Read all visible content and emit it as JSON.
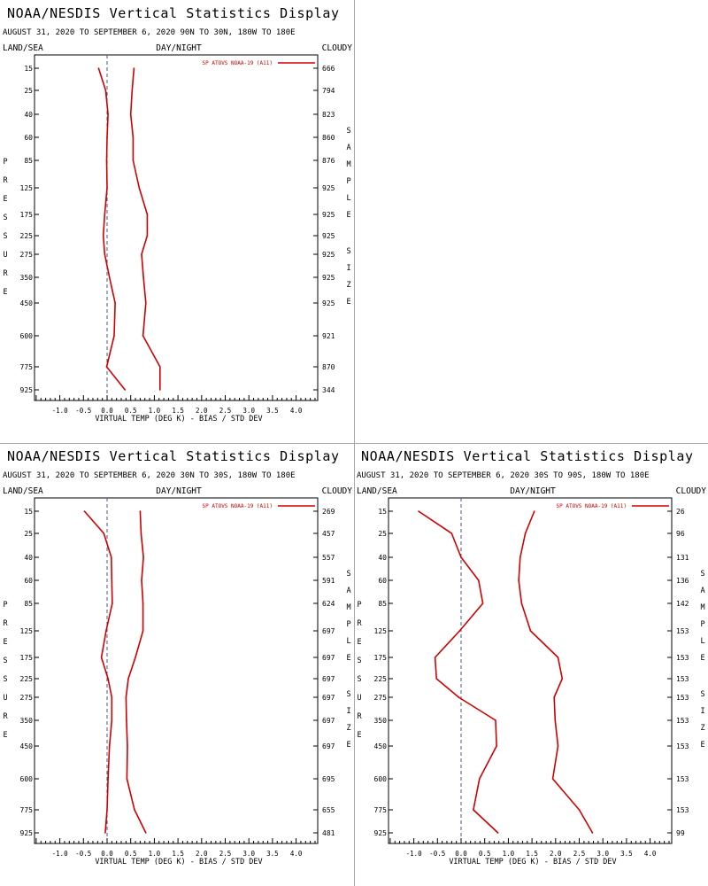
{
  "colors": {
    "series": "#d00000",
    "text": "#000000",
    "zero_line": "#4a5a8a",
    "divider": "#a8a8a8"
  },
  "chart_data": [
    {
      "type": "line",
      "title": "NOAA/NESDIS Vertical Statistics Display",
      "subtitle": "AUGUST 31, 2020 TO SEPTEMBER 6, 2020  90N TO 30N, 180W TO 180E",
      "header_left": "LAND/SEA",
      "header_center": "DAY/NIGHT",
      "header_right": "CLOUDY",
      "ylabel": "PRESSURE",
      "y2label": "SAMPLE SIZE",
      "xlabel": "VIRTUAL TEMP (DEG K) - BIAS / STD DEV",
      "legend": "SP ATOVS NOAA-19 (A11)",
      "xlim": [
        -1.5,
        4.5
      ],
      "x_ticks": [
        "-1.0",
        "-0.5",
        "0.0",
        "0.5",
        "1.0",
        "1.5",
        "2.0",
        "2.5",
        "3.0",
        "3.5",
        "4.0"
      ],
      "pressure_levels": [
        "15",
        "25",
        "40",
        "60",
        "85",
        "125",
        "175",
        "225",
        "275",
        "350",
        "450",
        "600",
        "775",
        "925"
      ],
      "sample_size": [
        "666",
        "794",
        "823",
        "860",
        "876",
        "925",
        "925",
        "925",
        "925",
        "925",
        "925",
        "921",
        "870",
        "344"
      ],
      "series": [
        {
          "name": "bias",
          "values": [
            -0.18,
            -0.03,
            0.02,
            0.0,
            -0.01,
            0.0,
            -0.05,
            -0.08,
            -0.05,
            0.05,
            0.17,
            0.15,
            -0.01,
            0.38
          ]
        },
        {
          "name": "std_dev",
          "values": [
            0.57,
            0.53,
            0.5,
            0.55,
            0.55,
            0.68,
            0.85,
            0.85,
            0.73,
            0.77,
            0.82,
            0.76,
            1.12,
            1.12
          ]
        }
      ]
    },
    {
      "type": "line",
      "title": "NOAA/NESDIS Vertical Statistics Display",
      "subtitle": "AUGUST 31, 2020 TO SEPTEMBER 6, 2020  30N TO 30S, 180W TO 180E",
      "header_left": "LAND/SEA",
      "header_center": "DAY/NIGHT",
      "header_right": "CLOUDY",
      "ylabel": "PRESSURE",
      "y2label": "SAMPLE SIZE",
      "xlabel": "VIRTUAL TEMP (DEG K) - BIAS / STD DEV",
      "legend": "SP ATOVS NOAA-19 (A11)",
      "xlim": [
        -1.5,
        4.5
      ],
      "x_ticks": [
        "-1.0",
        "-0.5",
        "0.0",
        "0.5",
        "1.0",
        "1.5",
        "2.0",
        "2.5",
        "3.0",
        "3.5",
        "4.0"
      ],
      "pressure_levels": [
        "15",
        "25",
        "40",
        "60",
        "85",
        "125",
        "175",
        "225",
        "275",
        "350",
        "450",
        "600",
        "775",
        "925"
      ],
      "sample_size": [
        "269",
        "457",
        "557",
        "591",
        "624",
        "697",
        "697",
        "697",
        "697",
        "697",
        "697",
        "695",
        "655",
        "481"
      ],
      "series": [
        {
          "name": "bias",
          "values": [
            -0.48,
            -0.07,
            0.09,
            0.1,
            0.11,
            -0.02,
            -0.12,
            0.02,
            0.1,
            0.1,
            0.05,
            0.02,
            0.0,
            -0.04
          ]
        },
        {
          "name": "std_dev",
          "values": [
            0.7,
            0.72,
            0.77,
            0.73,
            0.76,
            0.76,
            0.6,
            0.45,
            0.4,
            0.41,
            0.43,
            0.42,
            0.58,
            0.82
          ]
        }
      ]
    },
    {
      "type": "line",
      "title": "NOAA/NESDIS Vertical Statistics Display",
      "subtitle": "AUGUST 31, 2020 TO SEPTEMBER 6, 2020  30S TO 90S, 180W TO 180E",
      "header_left": "LAND/SEA",
      "header_center": "DAY/NIGHT",
      "header_right": "CLOUDY",
      "ylabel": "PRESSURE",
      "y2label": "SAMPLE SIZE",
      "xlabel": "VIRTUAL TEMP (DEG K) - BIAS / STD DEV",
      "legend": "SP ATOVS NOAA-19 (A11)",
      "xlim": [
        -1.5,
        4.5
      ],
      "x_ticks": [
        "-1.0",
        "-0.5",
        "0.0",
        "0.5",
        "1.0",
        "1.5",
        "2.0",
        "2.5",
        "3.0",
        "3.5",
        "4.0"
      ],
      "pressure_levels": [
        "15",
        "25",
        "40",
        "60",
        "85",
        "125",
        "175",
        "225",
        "275",
        "350",
        "450",
        "600",
        "775",
        "925"
      ],
      "sample_size": [
        "26",
        "96",
        "131",
        "136",
        "142",
        "153",
        "153",
        "153",
        "153",
        "153",
        "153",
        "153",
        "153",
        "99"
      ],
      "series": [
        {
          "name": "bias",
          "values": [
            -0.9,
            -0.2,
            0.0,
            0.37,
            0.46,
            -0.03,
            -0.55,
            -0.52,
            -0.05,
            0.73,
            0.75,
            0.39,
            0.26,
            0.78
          ]
        },
        {
          "name": "std_dev",
          "values": [
            1.55,
            1.36,
            1.25,
            1.22,
            1.28,
            1.47,
            2.05,
            2.14,
            1.97,
            1.99,
            2.05,
            1.94,
            2.5,
            2.78
          ]
        }
      ]
    }
  ]
}
